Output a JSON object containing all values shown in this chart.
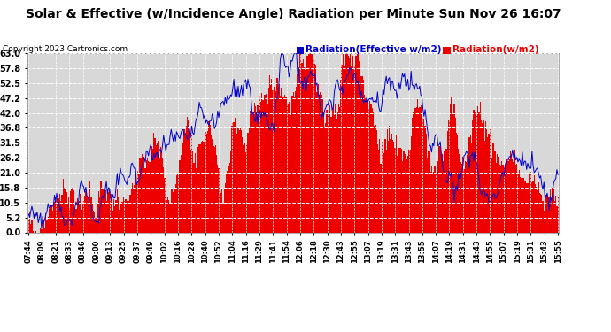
{
  "title": "Solar & Effective (w/Incidence Angle) Radiation per Minute Sun Nov 26 16:07",
  "copyright": "Copyright 2023 Cartronics.com",
  "legend_blue": "Radiation(Effective w/m2)",
  "legend_red": "Radiation(w/m2)",
  "y_ticks": [
    0.0,
    5.2,
    10.5,
    15.8,
    21.0,
    26.2,
    31.5,
    36.8,
    42.0,
    47.2,
    52.5,
    57.8,
    63.0
  ],
  "ylim": [
    0.0,
    63.0
  ],
  "background_color": "#ffffff",
  "plot_bg_color": "#d8d8d8",
  "bar_color": "#ee0000",
  "line_color": "#0000cc",
  "grid_color": "#ffffff",
  "title_fontsize": 11,
  "x_labels": [
    "07:44",
    "08:09",
    "08:21",
    "08:33",
    "08:46",
    "09:00",
    "09:13",
    "09:25",
    "09:37",
    "09:49",
    "10:02",
    "10:16",
    "10:28",
    "10:40",
    "10:52",
    "11:04",
    "11:16",
    "11:29",
    "11:41",
    "11:54",
    "12:06",
    "12:18",
    "12:30",
    "12:43",
    "12:55",
    "13:07",
    "13:19",
    "13:31",
    "13:43",
    "13:55",
    "14:07",
    "14:19",
    "14:31",
    "14:43",
    "14:55",
    "15:07",
    "15:19",
    "15:31",
    "15:43",
    "15:55"
  ]
}
